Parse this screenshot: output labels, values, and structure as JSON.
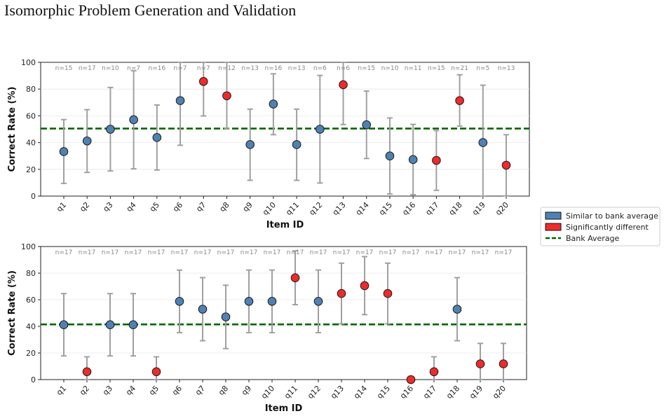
{
  "page": {
    "title": "Isomorphic Problem Generation and Validation"
  },
  "colors": {
    "similar": "#4f81b3",
    "different": "#ee2b2b",
    "bank_average": "#006400",
    "errorbar": "#a0a0a0",
    "n_label": "#888888",
    "grid": "#e8e8e8"
  },
  "legend": {
    "items": [
      {
        "label": "Similar to bank average",
        "color": "#4f81b3",
        "kind": "box"
      },
      {
        "label": "Significantly different",
        "color": "#ee2b2b",
        "kind": "box"
      },
      {
        "label": "Bank Average",
        "color": "#006400",
        "kind": "dash"
      }
    ]
  },
  "chart_data": [
    {
      "type": "scatter",
      "title": "",
      "xlabel": "Item ID",
      "ylabel": "Correct Rate (%)",
      "ylim": [
        0,
        100
      ],
      "yticks": [
        0,
        20,
        40,
        60,
        80,
        100
      ],
      "grid": true,
      "legend_placement": "right",
      "bank_average": 50.5,
      "categories": [
        "q1",
        "q2",
        "q3",
        "q4",
        "q5",
        "q6",
        "q7",
        "q8",
        "q9",
        "q10",
        "q11",
        "q12",
        "q13",
        "q14",
        "q15",
        "q16",
        "q17",
        "q18",
        "q19",
        "q20"
      ],
      "values": [
        33.3,
        41.2,
        50.0,
        57.1,
        43.8,
        71.4,
        85.7,
        75.0,
        38.5,
        68.8,
        38.5,
        50.0,
        83.3,
        53.3,
        30.0,
        27.3,
        26.7,
        71.4,
        40.0,
        23.1
      ],
      "ci_low": [
        9.5,
        17.7,
        18.8,
        20.4,
        19.5,
        38.0,
        59.9,
        50.5,
        11.8,
        45.9,
        11.8,
        9.8,
        53.5,
        28.1,
        1.6,
        1.0,
        4.3,
        52.3,
        0.0,
        0.2
      ],
      "ci_high": [
        57.2,
        64.6,
        81.2,
        93.7,
        68.1,
        100.0,
        100.0,
        100.0,
        65.0,
        91.4,
        65.0,
        90.2,
        100.0,
        78.5,
        58.4,
        53.6,
        49.0,
        90.7,
        82.9,
        45.9
      ],
      "significant": [
        false,
        false,
        false,
        false,
        false,
        false,
        true,
        true,
        false,
        false,
        false,
        false,
        true,
        false,
        false,
        false,
        true,
        true,
        false,
        true
      ],
      "n_labels": [
        "n=15",
        "n=17",
        "n=10",
        "n=7",
        "n=16",
        "n=7",
        "n=7",
        "n=12",
        "n=13",
        "n=16",
        "n=13",
        "n=6",
        "n=6",
        "n=15",
        "n=10",
        "n=11",
        "n=15",
        "n=21",
        "n=5",
        "n=13"
      ]
    },
    {
      "type": "scatter",
      "title": "",
      "xlabel": "Item ID",
      "ylabel": "Correct Rate (%)",
      "ylim": [
        0,
        100
      ],
      "yticks": [
        0,
        20,
        40,
        60,
        80,
        100
      ],
      "grid": true,
      "bank_average": 41.5,
      "categories": [
        "q1",
        "q2",
        "q3",
        "q4",
        "q5",
        "q6",
        "q7",
        "q8",
        "q9",
        "q10",
        "q11",
        "q12",
        "q13",
        "q14",
        "q15",
        "q16",
        "q17",
        "q18",
        "q19",
        "q20"
      ],
      "values": [
        41.2,
        5.9,
        41.2,
        41.2,
        5.9,
        58.8,
        52.9,
        47.1,
        58.8,
        58.8,
        76.5,
        58.8,
        64.7,
        70.6,
        64.7,
        0.0,
        5.9,
        52.9,
        11.8,
        11.8
      ],
      "ci_low": [
        17.8,
        0.0,
        17.8,
        17.8,
        0.0,
        35.3,
        29.2,
        23.3,
        35.3,
        35.3,
        56.3,
        35.3,
        41.9,
        48.8,
        41.9,
        0.0,
        0.0,
        29.2,
        0.0,
        0.0
      ],
      "ci_high": [
        64.6,
        17.1,
        64.6,
        64.6,
        17.1,
        82.3,
        76.6,
        70.9,
        82.3,
        82.3,
        96.7,
        82.3,
        87.5,
        92.4,
        87.5,
        0.0,
        17.1,
        76.6,
        27.2,
        27.2
      ],
      "significant": [
        false,
        true,
        false,
        false,
        true,
        false,
        false,
        false,
        false,
        false,
        true,
        false,
        true,
        true,
        true,
        true,
        true,
        false,
        true,
        true
      ],
      "n_labels": [
        "n=17",
        "n=17",
        "n=17",
        "n=17",
        "n=17",
        "n=17",
        "n=17",
        "n=17",
        "n=17",
        "n=17",
        "n=17",
        "n=17",
        "n=17",
        "n=17",
        "n=17",
        "n=17",
        "n=17",
        "n=17",
        "n=17",
        "n=17"
      ]
    }
  ]
}
